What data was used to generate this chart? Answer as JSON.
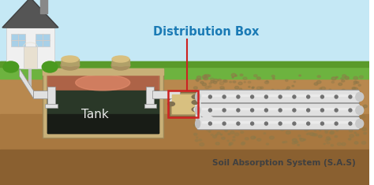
{
  "title": "Distribution Box",
  "subtitle": "Soil Absorption System (S.A.S)",
  "tank_label": "Tank",
  "bg_sky_color": "#c5e8f5",
  "bg_grass_color": "#6db33f",
  "bg_grass_dark": "#5a9a2a",
  "bg_soil_color": "#b8884e",
  "bg_soil_mid": "#a87840",
  "bg_soil_deep": "#8a6030",
  "tank_outer_color": "#c8b078",
  "tank_inner_dark": "#1a2018",
  "tank_scum_color": "#c87850",
  "tank_water_mid": "#384535",
  "dbox_color": "#c0a868",
  "dbox_light": "#d8c080",
  "pipe_color": "#e0e0e0",
  "pipe_shadow": "#909090",
  "pipe_dark": "#b0b0b0",
  "label_color": "#1a7ab5",
  "red_color": "#cc2222",
  "white_color": "#ffffff",
  "house_wall": "#f0f0f0",
  "house_roof": "#555555",
  "house_chimney": "#888888",
  "bush_color": "#4a9a20",
  "cap_color": "#c0a868",
  "cap_light": "#d8c080",
  "gravel_color": "#a09060",
  "figsize": [
    4.74,
    2.35
  ],
  "dpi": 100
}
